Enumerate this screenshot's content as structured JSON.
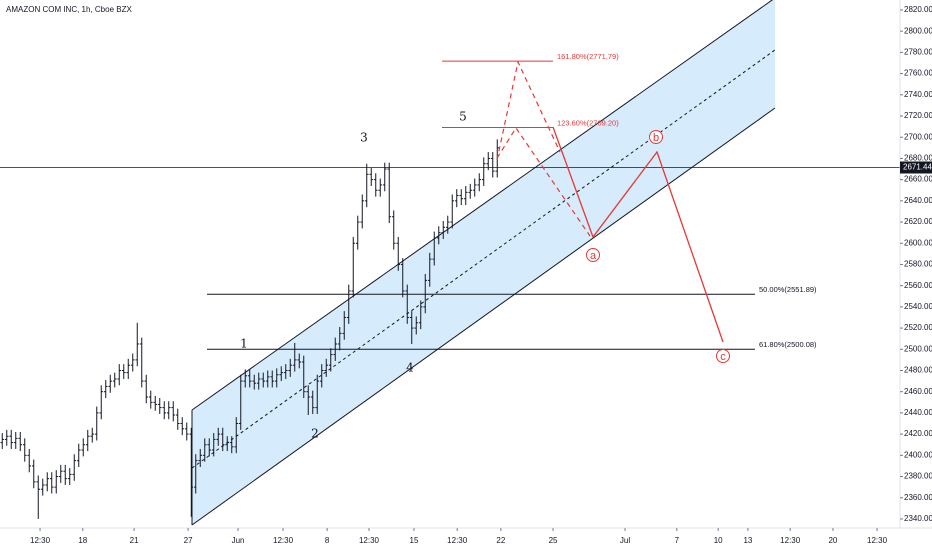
{
  "chart_data": {
    "type": "ohlc",
    "title": "AMAZON COM INC, 1h, Cboe BZX",
    "color": "#131722",
    "open": [
      2412,
      2415,
      2418,
      2412,
      2416,
      2410,
      2400,
      2390,
      2375,
      2368,
      2372,
      2378,
      2370,
      2380,
      2385,
      2378,
      2382,
      2395,
      2405,
      2410,
      2418,
      2420,
      2440,
      2460,
      2465,
      2470,
      2472,
      2480,
      2478,
      2485,
      2490,
      2505,
      2470,
      2455,
      2450,
      2448,
      2445,
      2440,
      2445,
      2438,
      2430,
      2425,
      2420,
      2370,
      2395,
      2400,
      2410,
      2405,
      2415,
      2420,
      2410,
      2412,
      2408,
      2430,
      2470,
      2475,
      2470,
      2468,
      2472,
      2470,
      2474,
      2470,
      2476,
      2478,
      2480,
      2485,
      2490,
      2488,
      2460,
      2455,
      2445,
      2470,
      2480,
      2485,
      2495,
      2505,
      2515,
      2530,
      2555,
      2600,
      2620,
      2640,
      2665,
      2660,
      2650,
      2655,
      2670,
      2625,
      2600,
      2580,
      2555,
      2530,
      2520,
      2525,
      2540,
      2565,
      2585,
      2605,
      2610,
      2615,
      2620,
      2640,
      2645,
      2642,
      2648,
      2650,
      2655,
      2660,
      2675,
      2680,
      2668
    ],
    "high": [
      2421,
      2424,
      2424,
      2422,
      2422,
      2416,
      2406,
      2396,
      2381,
      2378,
      2384,
      2384,
      2386,
      2391,
      2391,
      2388,
      2401,
      2411,
      2416,
      2424,
      2426,
      2446,
      2466,
      2471,
      2476,
      2478,
      2486,
      2486,
      2491,
      2496,
      2525,
      2511,
      2476,
      2461,
      2456,
      2454,
      2451,
      2451,
      2451,
      2444,
      2436,
      2431,
      2426,
      2401,
      2406,
      2416,
      2416,
      2421,
      2426,
      2426,
      2418,
      2418,
      2436,
      2476,
      2481,
      2481,
      2476,
      2478,
      2478,
      2480,
      2480,
      2482,
      2484,
      2486,
      2491,
      2506,
      2496,
      2494,
      2466,
      2461,
      2476,
      2486,
      2491,
      2501,
      2511,
      2521,
      2536,
      2561,
      2606,
      2626,
      2646,
      2675,
      2671,
      2666,
      2661,
      2676,
      2676,
      2631,
      2606,
      2586,
      2561,
      2536,
      2531,
      2546,
      2571,
      2591,
      2611,
      2616,
      2621,
      2626,
      2646,
      2651,
      2651,
      2654,
      2656,
      2661,
      2666,
      2681,
      2686,
      2686,
      2698
    ],
    "low": [
      2406,
      2409,
      2406,
      2406,
      2404,
      2394,
      2384,
      2369,
      2340,
      2362,
      2366,
      2364,
      2364,
      2374,
      2372,
      2372,
      2376,
      2389,
      2399,
      2404,
      2412,
      2414,
      2434,
      2454,
      2459,
      2464,
      2466,
      2472,
      2472,
      2479,
      2484,
      2464,
      2449,
      2444,
      2442,
      2439,
      2434,
      2434,
      2432,
      2424,
      2419,
      2414,
      2342,
      2364,
      2389,
      2394,
      2399,
      2399,
      2409,
      2404,
      2404,
      2402,
      2402,
      2424,
      2464,
      2464,
      2462,
      2462,
      2464,
      2464,
      2464,
      2464,
      2470,
      2472,
      2474,
      2479,
      2482,
      2454,
      2438,
      2439,
      2439,
      2464,
      2474,
      2479,
      2489,
      2499,
      2509,
      2524,
      2549,
      2594,
      2614,
      2634,
      2654,
      2644,
      2644,
      2649,
      2619,
      2594,
      2574,
      2549,
      2524,
      2505,
      2514,
      2519,
      2534,
      2559,
      2579,
      2599,
      2604,
      2609,
      2614,
      2634,
      2636,
      2636,
      2642,
      2644,
      2649,
      2654,
      2669,
      2662,
      2662
    ],
    "close": [
      2415,
      2418,
      2412,
      2416,
      2410,
      2400,
      2390,
      2375,
      2368,
      2372,
      2378,
      2370,
      2380,
      2385,
      2378,
      2382,
      2395,
      2405,
      2410,
      2418,
      2420,
      2440,
      2460,
      2465,
      2470,
      2472,
      2480,
      2478,
      2485,
      2490,
      2505,
      2470,
      2455,
      2450,
      2448,
      2445,
      2440,
      2445,
      2438,
      2430,
      2425,
      2420,
      2370,
      2395,
      2400,
      2410,
      2405,
      2415,
      2420,
      2410,
      2412,
      2408,
      2430,
      2470,
      2475,
      2470,
      2468,
      2472,
      2470,
      2474,
      2470,
      2476,
      2478,
      2480,
      2485,
      2490,
      2488,
      2460,
      2455,
      2445,
      2470,
      2480,
      2485,
      2495,
      2505,
      2515,
      2530,
      2555,
      2600,
      2620,
      2640,
      2665,
      2660,
      2650,
      2655,
      2670,
      2625,
      2600,
      2580,
      2555,
      2530,
      2520,
      2525,
      2540,
      2565,
      2585,
      2605,
      2610,
      2615,
      2620,
      2640,
      2645,
      2642,
      2648,
      2650,
      2655,
      2660,
      2675,
      2680,
      2668,
      2690
    ],
    "xlim": [
      0,
      200
    ],
    "xticks": [
      {
        "value": 8.9,
        "label": "12:30"
      },
      {
        "value": 18.4,
        "label": "18"
      },
      {
        "value": 29.8,
        "label": "21"
      },
      {
        "value": 41.8,
        "label": "27"
      },
      {
        "value": 52.9,
        "label": "Jun"
      },
      {
        "value": 62.9,
        "label": "12:30"
      },
      {
        "value": 72.7,
        "label": "8"
      },
      {
        "value": 82,
        "label": "12:30"
      },
      {
        "value": 92,
        "label": "15"
      },
      {
        "value": 101.6,
        "label": "12:30"
      },
      {
        "value": 111.3,
        "label": "22"
      },
      {
        "value": 122.9,
        "label": "25"
      },
      {
        "value": 138.9,
        "label": "Jul"
      },
      {
        "value": 150.4,
        "label": "7"
      },
      {
        "value": 159.6,
        "label": "10"
      },
      {
        "value": 166.2,
        "label": "13"
      },
      {
        "value": 175.6,
        "label": "12:30"
      },
      {
        "value": 185.1,
        "label": "20"
      },
      {
        "value": 194.9,
        "label": "12:30"
      }
    ],
    "ylim": [
      2332.4,
      2829.4
    ],
    "yticks": [
      {
        "value": 2340,
        "label": "2340.00"
      },
      {
        "value": 2360,
        "label": "2360.00"
      },
      {
        "value": 2380,
        "label": "2380.00"
      },
      {
        "value": 2400,
        "label": "2400.00"
      },
      {
        "value": 2420,
        "label": "2420.00"
      },
      {
        "value": 2440,
        "label": "2440.00"
      },
      {
        "value": 2460,
        "label": "2460.00"
      },
      {
        "value": 2480,
        "label": "2480.00"
      },
      {
        "value": 2500,
        "label": "2500.00"
      },
      {
        "value": 2520,
        "label": "2520.00"
      },
      {
        "value": 2540,
        "label": "2540.00"
      },
      {
        "value": 2560,
        "label": "2560.00"
      },
      {
        "value": 2580,
        "label": "2580.00"
      },
      {
        "value": 2600,
        "label": "2600.00"
      },
      {
        "value": 2620,
        "label": "2620.00"
      },
      {
        "value": 2640,
        "label": "2640.00"
      },
      {
        "value": 2660,
        "label": "2660.00"
      },
      {
        "value": 2680,
        "label": "2680.00"
      },
      {
        "value": 2700,
        "label": "2700.00"
      },
      {
        "value": 2720,
        "label": "2720.00"
      },
      {
        "value": 2740,
        "label": "2740.00"
      },
      {
        "value": 2760,
        "label": "2760.00"
      },
      {
        "value": 2780,
        "label": "2780.00"
      },
      {
        "value": 2800,
        "label": "2800.00"
      },
      {
        "value": 2820,
        "label": "2820.00"
      }
    ],
    "grid": false,
    "current_price": 2671.44,
    "fib_levels": [
      {
        "value": 2771.79,
        "label": "161.80%(2771.79)"
      },
      {
        "value": 2709.2,
        "label": "123.60%(2709.20)"
      },
      {
        "value": 2551.89,
        "label": "50.00%(2551.89)"
      },
      {
        "value": 2500.08,
        "label": "61.80%(2500.08)"
      }
    ],
    "wave_labels": [
      "1",
      "2",
      "3",
      "4",
      "5"
    ],
    "projection_labels": [
      "a",
      "b",
      "c"
    ]
  }
}
